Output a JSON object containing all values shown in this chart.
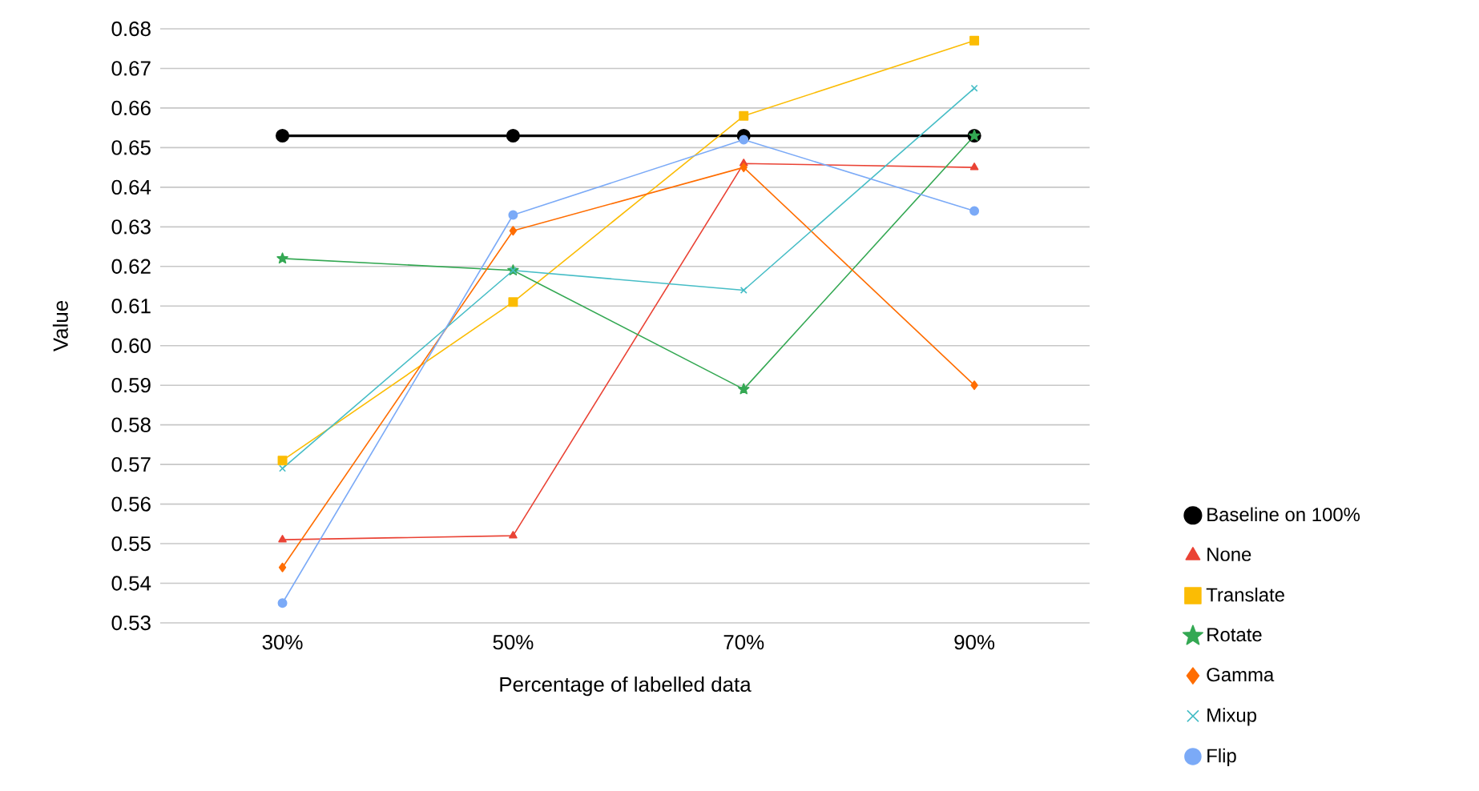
{
  "chart_data": {
    "type": "line",
    "xlabel": "Percentage of labelled data",
    "ylabel": "Value",
    "categories": [
      "30%",
      "50%",
      "70%",
      "90%"
    ],
    "series": [
      {
        "name": "Baseline on 100%",
        "color": "#000000",
        "marker": "circle",
        "values": [
          0.653,
          0.653,
          0.653,
          0.653
        ]
      },
      {
        "name": "None",
        "color": "#ea4335",
        "marker": "triangle",
        "values": [
          0.551,
          0.552,
          0.646,
          0.645
        ]
      },
      {
        "name": "Translate",
        "color": "#fbbc04",
        "marker": "square",
        "values": [
          0.571,
          0.611,
          0.658,
          0.677
        ]
      },
      {
        "name": "Rotate",
        "color": "#34a853",
        "marker": "star",
        "values": [
          0.622,
          0.619,
          0.589,
          0.653
        ]
      },
      {
        "name": "Gamma",
        "color": "#ff6d01",
        "marker": "diamond",
        "values": [
          0.544,
          0.629,
          0.645,
          0.59
        ]
      },
      {
        "name": "Mixup",
        "color": "#46bdc6",
        "marker": "cross",
        "values": [
          0.569,
          0.619,
          0.614,
          0.665
        ]
      },
      {
        "name": "Flip",
        "color": "#7baaf7",
        "marker": "circle",
        "values": [
          0.535,
          0.633,
          0.652,
          0.634
        ]
      }
    ],
    "ylim": [
      0.53,
      0.68
    ],
    "yticks": [
      0.53,
      0.54,
      0.55,
      0.56,
      0.57,
      0.58,
      0.59,
      {
        "value": 0.6,
        "label": "0.60"
      },
      0.61,
      0.62,
      0.63,
      0.64,
      0.65,
      0.66,
      0.67,
      0.68
    ],
    "grid": "y",
    "legend": "right",
    "line_style": "solid"
  }
}
